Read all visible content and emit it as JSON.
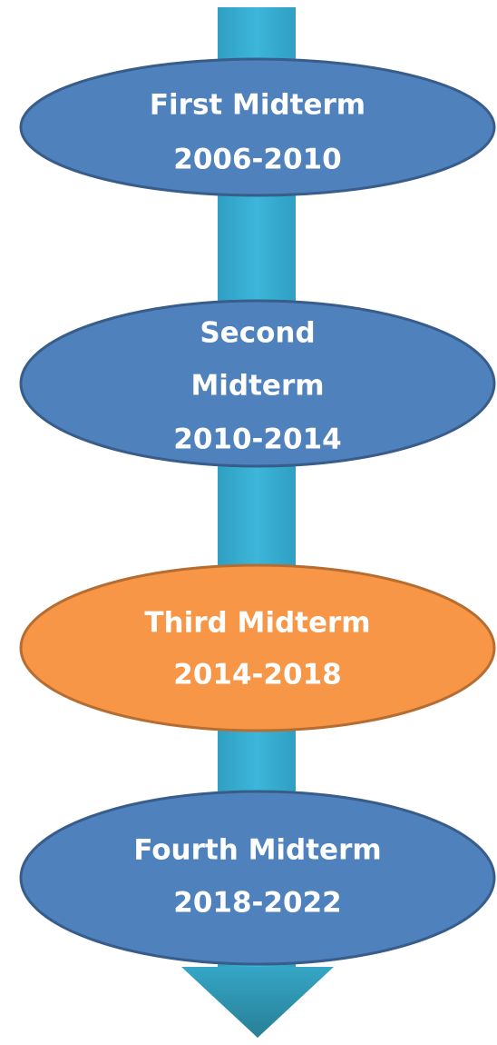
{
  "nodes": [
    {
      "lines": [
        "First Midterm",
        "2006-2010"
      ]
    },
    {
      "lines": [
        "Second",
        "Midterm",
        "2010-2014"
      ]
    },
    {
      "lines": [
        "Third Midterm",
        "2014-2018"
      ]
    },
    {
      "lines": [
        "Fourth Midterm",
        "2018-2022"
      ]
    }
  ]
}
